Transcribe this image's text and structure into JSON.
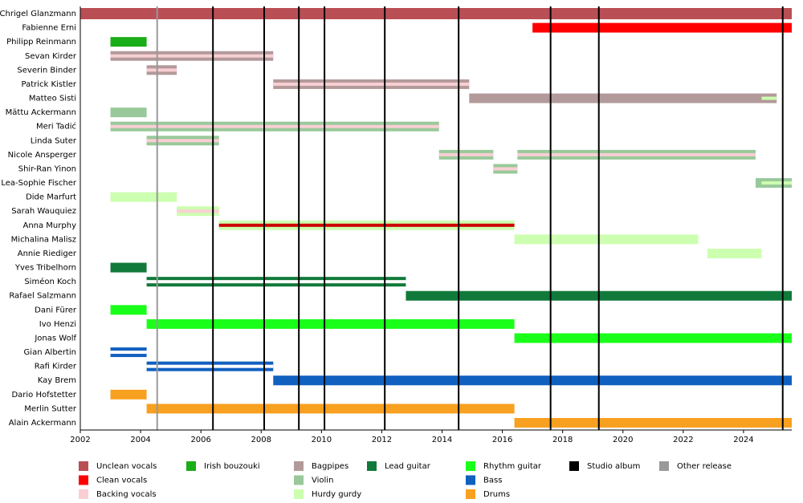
{
  "chart_data": {
    "type": "timeline",
    "xlim": [
      2002,
      2025.6
    ],
    "xticks": [
      2002,
      2004,
      2006,
      2008,
      2010,
      2012,
      2014,
      2016,
      2018,
      2020,
      2022,
      2024
    ],
    "studio_albums": [
      2006.4,
      2008.1,
      2009.25,
      2010.1,
      2012.1,
      2014.55,
      2017.6,
      2019.2,
      2025.3
    ],
    "other_releases": [
      2004.55
    ],
    "album_color": "#000000",
    "release_color": "#999999",
    "members": [
      {
        "name": "Chrigel Glanzmann",
        "bars": [
          {
            "start": 2002,
            "end": 2025.6,
            "color": "#b94f55"
          }
        ]
      },
      {
        "name": "Fabienne Erni",
        "bars": [
          {
            "start": 2017.0,
            "end": 2025.6,
            "color": "#ff0000"
          }
        ]
      },
      {
        "name": "Philipp Reinmann",
        "bars": [
          {
            "start": 2003.0,
            "end": 2004.2,
            "color": "#1aad1a"
          }
        ]
      },
      {
        "name": "Sevan Kirder",
        "bars": [
          {
            "start": 2003.0,
            "end": 2008.4,
            "color": "#b39a9a",
            "stripe": {
              "color": "#f9cfd4",
              "start": 2003.0,
              "end": 2008.4
            }
          }
        ]
      },
      {
        "name": "Severin Binder",
        "bars": [
          {
            "start": 2004.2,
            "end": 2005.2,
            "color": "#b39a9a",
            "stripe": {
              "color": "#f9cfd4",
              "start": 2004.2,
              "end": 2005.2
            }
          }
        ]
      },
      {
        "name": "Patrick Kistler",
        "bars": [
          {
            "start": 2008.4,
            "end": 2014.9,
            "color": "#b39a9a",
            "stripe": {
              "color": "#f9cfd4",
              "start": 2008.4,
              "end": 2014.9
            }
          }
        ]
      },
      {
        "name": "Matteo Sisti",
        "bars": [
          {
            "start": 2014.9,
            "end": 2025.1,
            "color": "#b39a9a",
            "stripe": {
              "color": "#ccffb0",
              "start": 2024.6,
              "end": 2025.1
            }
          }
        ]
      },
      {
        "name": "Mättu Ackermann",
        "bars": [
          {
            "start": 2003.0,
            "end": 2004.2,
            "color": "#99c99a"
          }
        ]
      },
      {
        "name": "Meri Tadić",
        "bars": [
          {
            "start": 2003.0,
            "end": 2013.9,
            "color": "#99c99a",
            "stripe": {
              "color": "#f9cfd4",
              "start": 2003.0,
              "end": 2013.9
            }
          }
        ]
      },
      {
        "name": "Linda Suter",
        "bars": [
          {
            "start": 2004.2,
            "end": 2006.6,
            "color": "#99c99a",
            "stripe": {
              "color": "#f9cfd4",
              "start": 2004.2,
              "end": 2006.6
            }
          }
        ]
      },
      {
        "name": "Nicole Ansperger",
        "bars": [
          {
            "start": 2013.9,
            "end": 2015.7,
            "color": "#99c99a",
            "stripe": {
              "color": "#f9cfd4",
              "start": 2013.9,
              "end": 2015.7
            }
          },
          {
            "start": 2016.5,
            "end": 2024.4,
            "color": "#99c99a",
            "stripe": {
              "color": "#f9cfd4",
              "start": 2016.5,
              "end": 2024.4
            }
          }
        ]
      },
      {
        "name": "Shir-Ran Yinon",
        "bars": [
          {
            "start": 2015.7,
            "end": 2016.5,
            "color": "#99c99a",
            "stripe": {
              "color": "#f9cfd4",
              "start": 2015.7,
              "end": 2016.5
            }
          }
        ]
      },
      {
        "name": "Lea-Sophie Fischer",
        "bars": [
          {
            "start": 2024.4,
            "end": 2025.6,
            "color": "#99c99a",
            "stripe": {
              "color": "#ccffb0",
              "start": 2024.6,
              "end": 2025.6
            }
          }
        ]
      },
      {
        "name": "Dide Marfurt",
        "bars": [
          {
            "start": 2003.0,
            "end": 2005.2,
            "color": "#ccffb0"
          }
        ]
      },
      {
        "name": "Sarah Wauquiez",
        "bars": [
          {
            "start": 2005.2,
            "end": 2006.6,
            "color": "#ccffb0",
            "stripe": {
              "color": "#f9cfd4",
              "start": 2005.2,
              "end": 2006.6
            }
          }
        ]
      },
      {
        "name": "Anna Murphy",
        "bars": [
          {
            "start": 2006.6,
            "end": 2016.4,
            "color": "#ccffb0",
            "stripe": {
              "color": "#cc0000",
              "start": 2006.6,
              "end": 2016.4
            }
          }
        ]
      },
      {
        "name": "Michalina Malisz",
        "bars": [
          {
            "start": 2016.4,
            "end": 2022.5,
            "color": "#ccffb0"
          }
        ]
      },
      {
        "name": "Annie Riediger",
        "bars": [
          {
            "start": 2022.8,
            "end": 2024.6,
            "color": "#ccffb0"
          }
        ]
      },
      {
        "name": "Yves Tribelhorn",
        "bars": [
          {
            "start": 2003.0,
            "end": 2004.2,
            "color": "#117a3a"
          }
        ]
      },
      {
        "name": "Siméon Koch",
        "bars": [
          {
            "start": 2004.2,
            "end": 2012.8,
            "color": "#117a3a",
            "stripe": {
              "color": "#ffffff",
              "start": 2004.2,
              "end": 2012.8
            }
          }
        ]
      },
      {
        "name": "Rafael Salzmann",
        "bars": [
          {
            "start": 2012.8,
            "end": 2025.6,
            "color": "#117a3a"
          }
        ]
      },
      {
        "name": "Dani Fürer",
        "bars": [
          {
            "start": 2003.0,
            "end": 2004.2,
            "color": "#1aff1a"
          }
        ]
      },
      {
        "name": "Ivo Henzi",
        "bars": [
          {
            "start": 2004.2,
            "end": 2016.4,
            "color": "#1aff1a"
          }
        ]
      },
      {
        "name": "Jonas Wolf",
        "bars": [
          {
            "start": 2016.4,
            "end": 2025.6,
            "color": "#1aff1a"
          }
        ]
      },
      {
        "name": "Gian Albertin",
        "bars": [
          {
            "start": 2003.0,
            "end": 2004.2,
            "color": "#1060c0",
            "stripe": {
              "color": "#ffffff",
              "start": 2003.0,
              "end": 2004.2
            }
          }
        ]
      },
      {
        "name": "Rafi Kirder",
        "bars": [
          {
            "start": 2004.2,
            "end": 2008.4,
            "color": "#1060c0",
            "stripe": {
              "color": "#ffffff",
              "start": 2004.2,
              "end": 2008.4
            }
          }
        ]
      },
      {
        "name": "Kay Brem",
        "bars": [
          {
            "start": 2008.4,
            "end": 2025.6,
            "color": "#1060c0"
          }
        ]
      },
      {
        "name": "Dario Hofstetter",
        "bars": [
          {
            "start": 2003.0,
            "end": 2004.2,
            "color": "#f8a020"
          }
        ]
      },
      {
        "name": "Merlin Sutter",
        "bars": [
          {
            "start": 2004.2,
            "end": 2016.4,
            "color": "#f8a020"
          }
        ]
      },
      {
        "name": "Alain Ackermann",
        "bars": [
          {
            "start": 2016.4,
            "end": 2025.6,
            "color": "#f8a020"
          }
        ]
      }
    ],
    "legend": [
      {
        "name": "Unclean vocals",
        "color": "#b94f55"
      },
      {
        "name": "Clean vocals",
        "color": "#ff0000"
      },
      {
        "name": "Backing vocals",
        "color": "#f9cfd4"
      },
      {
        "name": "Irish bouzouki",
        "color": "#1aad1a"
      },
      {
        "name": "Bagpipes",
        "color": "#b39a9a"
      },
      {
        "name": "Violin",
        "color": "#99c99a"
      },
      {
        "name": "Hurdy gurdy",
        "color": "#ccffb0"
      },
      {
        "name": "Lead guitar",
        "color": "#117a3a"
      },
      {
        "name": "Rhythm guitar",
        "color": "#1aff1a"
      },
      {
        "name": "Bass",
        "color": "#1060c0"
      },
      {
        "name": "Drums",
        "color": "#f8a020"
      },
      {
        "name": "Studio album",
        "color": "#000000"
      },
      {
        "name": "Other release",
        "color": "#999999"
      }
    ]
  }
}
